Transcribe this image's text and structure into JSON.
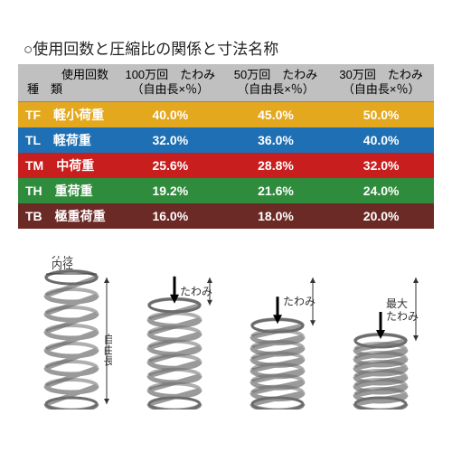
{
  "title": "○使用回数と圧縮比の関係と寸法名称",
  "header": {
    "corner_top": "使用回数",
    "corner_bottom": "種　類",
    "cols": [
      {
        "top": "100万回　たわみ",
        "bottom": "（自由長×％）"
      },
      {
        "top": "50万回　たわみ",
        "bottom": "（自由長×％）"
      },
      {
        "top": "30万回　たわみ",
        "bottom": "（自由長×％）"
      }
    ]
  },
  "rows": [
    {
      "code": "TF",
      "label": "軽小荷重",
      "cells": [
        "40.0%",
        "45.0%",
        "50.0%"
      ],
      "bg": "#e4a81f",
      "fg": "#ffffff",
      "fw": 700
    },
    {
      "code": "TL",
      "label": "軽荷重",
      "cells": [
        "32.0%",
        "36.0%",
        "40.0%"
      ],
      "bg": "#1e6fb3",
      "fg": "#ffffff",
      "fw": 700
    },
    {
      "code": "TM",
      "label": "中荷重",
      "cells": [
        "25.6%",
        "28.8%",
        "32.0%"
      ],
      "bg": "#c91e1e",
      "fg": "#ffffff",
      "fw": 700
    },
    {
      "code": "TH",
      "label": "重荷重",
      "cells": [
        "19.2%",
        "21.6%",
        "24.0%"
      ],
      "bg": "#2f8c3d",
      "fg": "#ffffff",
      "fw": 700
    },
    {
      "code": "TB",
      "label": "極重荷重",
      "cells": [
        "16.0%",
        "18.0%",
        "20.0%"
      ],
      "bg": "#6b2a25",
      "fg": "#ffffff",
      "fw": 700
    }
  ],
  "diagram": {
    "label_outer": "外径",
    "label_inner": "内径",
    "label_freelength": "自由長",
    "label_deflection": "たわみ",
    "label_maxdeflection": "最大",
    "label_maxdeflection2": "たわみ",
    "spring_color": "#9a9a9a",
    "spring_edge": "#6c6c6c",
    "springs": [
      {
        "coils": 7,
        "compress": 1.0,
        "label_type": "free"
      },
      {
        "coils": 7,
        "compress": 0.78,
        "label_type": "defl"
      },
      {
        "coils": 7,
        "compress": 0.62,
        "label_type": "defl"
      },
      {
        "coils": 7,
        "compress": 0.5,
        "label_type": "maxdefl"
      }
    ]
  },
  "layout": {
    "header_bg": "#c0c0c0",
    "axis_fontsize": 13
  }
}
